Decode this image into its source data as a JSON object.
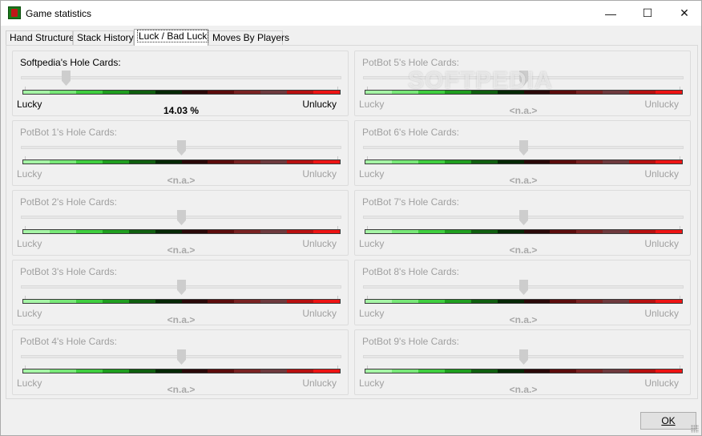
{
  "window": {
    "title": "Game statistics",
    "icon": "poker-table-icon",
    "minimize_glyph": "—",
    "maximize_glyph": "☐",
    "close_glyph": "✕"
  },
  "tabs": [
    {
      "label": "Hand Structure",
      "active": false
    },
    {
      "label": "Stack History",
      "active": false
    },
    {
      "label": "Luck / Bad Luck",
      "active": true
    },
    {
      "label": "Moves By Players",
      "active": false
    }
  ],
  "luck_panels": [
    {
      "title": "Softpedia's Hole Cards:",
      "value": "14.03 %",
      "slider_position": 0.14,
      "enabled": true
    },
    {
      "title": "PotBot 1's Hole Cards:",
      "value": "<n.a.>",
      "slider_position": 0.5,
      "enabled": false
    },
    {
      "title": "PotBot 2's Hole Cards:",
      "value": "<n.a.>",
      "slider_position": 0.5,
      "enabled": false
    },
    {
      "title": "PotBot 3's Hole Cards:",
      "value": "<n.a.>",
      "slider_position": 0.5,
      "enabled": false
    },
    {
      "title": "PotBot 4's Hole Cards:",
      "value": "<n.a.>",
      "slider_position": 0.5,
      "enabled": false
    },
    {
      "title": "PotBot 5's Hole Cards:",
      "value": "<n.a.>",
      "slider_position": 0.5,
      "enabled": false
    },
    {
      "title": "PotBot 6's Hole Cards:",
      "value": "<n.a.>",
      "slider_position": 0.5,
      "enabled": false
    },
    {
      "title": "PotBot 7's Hole Cards:",
      "value": "<n.a.>",
      "slider_position": 0.5,
      "enabled": false
    },
    {
      "title": "PotBot 8's Hole Cards:",
      "value": "<n.a.>",
      "slider_position": 0.5,
      "enabled": false
    },
    {
      "title": "PotBot 9's Hole Cards:",
      "value": "<n.a.>",
      "slider_position": 0.5,
      "enabled": false
    }
  ],
  "scale_labels": {
    "lucky": "Lucky",
    "unlucky": "Unlucky"
  },
  "gradient_colors": [
    "#a6f5a6",
    "#78e878",
    "#3fce3f",
    "#1f9e1f",
    "#0f5f0f",
    "#052805",
    "#2a0808",
    "#5c0c0c",
    "#7a2222",
    "#6e3a3e",
    "#b81010",
    "#ee1414"
  ],
  "watermark": "SOFTPEDIA",
  "footer": {
    "ok_label": "OK"
  }
}
